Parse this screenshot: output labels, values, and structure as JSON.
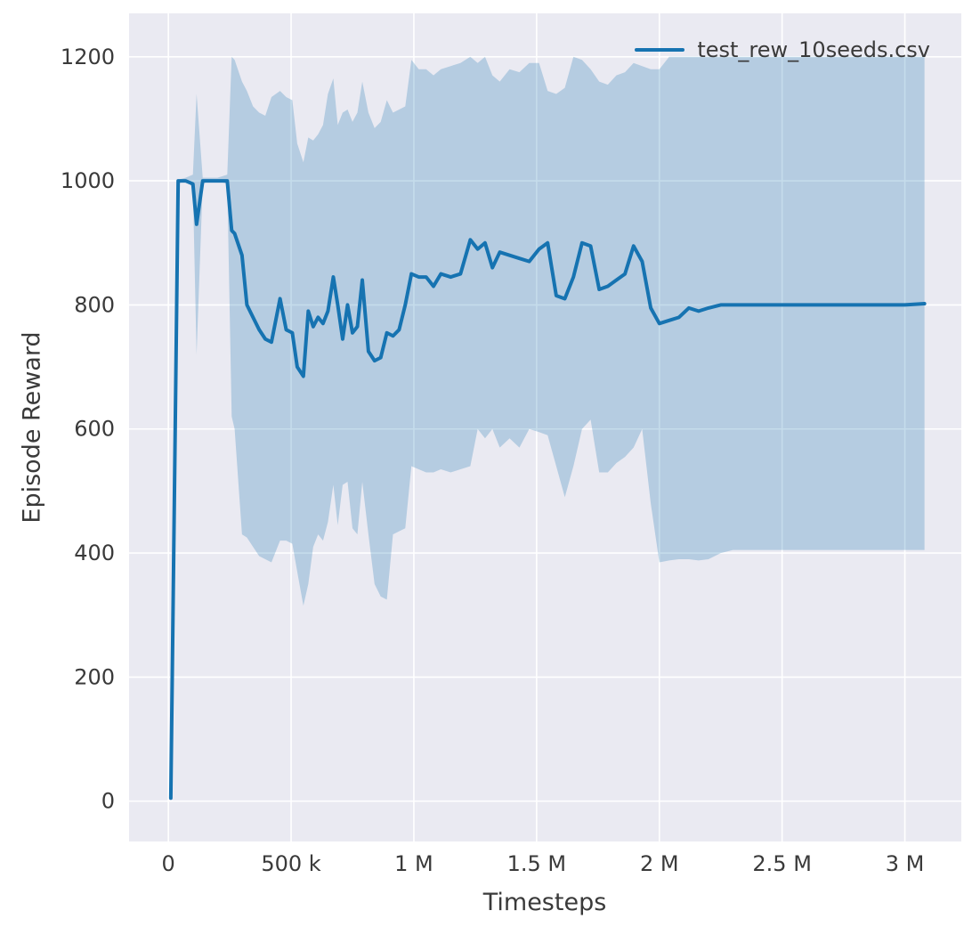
{
  "chart_data": {
    "type": "line",
    "title": "",
    "xlabel": "Timesteps",
    "ylabel": "Episode Reward",
    "legend": {
      "entries": [
        "test_rew_10seeds.csv"
      ],
      "position": "upper right",
      "frame": false
    },
    "grid": true,
    "xlim": [
      -160000,
      3230000
    ],
    "ylim": [
      -65,
      1270
    ],
    "x_ticks": {
      "values": [
        0,
        500000,
        1000000,
        1500000,
        2000000,
        2500000,
        3000000
      ],
      "labels": [
        "0",
        "500 k",
        "1 M",
        "1.5 M",
        "2 M",
        "2.5 M",
        "3 M"
      ]
    },
    "y_ticks": {
      "values": [
        0,
        200,
        400,
        600,
        800,
        1000,
        1200
      ],
      "labels": [
        "0",
        "200",
        "400",
        "600",
        "800",
        "1000",
        "1200"
      ]
    },
    "colors": {
      "line": "#1673b1",
      "band_opacity": 0.25,
      "background": "#eaeaf2",
      "grid": "#ffffff",
      "text": "#3a3a3a",
      "page": "#ffffff"
    },
    "series": [
      {
        "name": "test_rew_10seeds.csv",
        "x": [
          10000,
          40000,
          70000,
          100000,
          115000,
          140000,
          170000,
          200000,
          240000,
          258000,
          270000,
          300000,
          320000,
          345000,
          370000,
          395000,
          420000,
          455000,
          480000,
          505000,
          525000,
          550000,
          570000,
          590000,
          610000,
          630000,
          650000,
          672000,
          690000,
          710000,
          730000,
          750000,
          770000,
          790000,
          815000,
          840000,
          865000,
          890000,
          915000,
          940000,
          965000,
          990000,
          1020000,
          1050000,
          1080000,
          1110000,
          1150000,
          1190000,
          1230000,
          1260000,
          1290000,
          1320000,
          1350000,
          1390000,
          1430000,
          1470000,
          1510000,
          1545000,
          1580000,
          1615000,
          1650000,
          1685000,
          1720000,
          1755000,
          1790000,
          1825000,
          1860000,
          1895000,
          1930000,
          1965000,
          2000000,
          2040000,
          2080000,
          2120000,
          2160000,
          2200000,
          2250000,
          2300000,
          2400000,
          2500000,
          2600000,
          2700000,
          2800000,
          2900000,
          3000000,
          3080000
        ],
        "mean": [
          5,
          1000,
          1000,
          995,
          930,
          1000,
          1000,
          1000,
          1000,
          920,
          915,
          880,
          800,
          780,
          760,
          745,
          740,
          810,
          760,
          755,
          700,
          685,
          790,
          765,
          780,
          770,
          790,
          845,
          800,
          745,
          800,
          755,
          765,
          840,
          725,
          710,
          715,
          755,
          750,
          760,
          800,
          850,
          845,
          845,
          830,
          850,
          845,
          850,
          905,
          890,
          900,
          860,
          885,
          880,
          875,
          870,
          890,
          900,
          815,
          810,
          845,
          900,
          895,
          825,
          830,
          840,
          850,
          895,
          870,
          795,
          770,
          775,
          780,
          795,
          790,
          795,
          800,
          800,
          800,
          800,
          800,
          800,
          800,
          800,
          800,
          802
        ],
        "band_lower": [
          2,
          995,
          1000,
          990,
          720,
          995,
          1000,
          1000,
          995,
          620,
          600,
          430,
          425,
          410,
          395,
          390,
          385,
          420,
          420,
          415,
          370,
          315,
          350,
          410,
          430,
          420,
          450,
          510,
          445,
          510,
          515,
          440,
          430,
          515,
          430,
          350,
          330,
          325,
          430,
          435,
          440,
          540,
          535,
          530,
          530,
          535,
          530,
          535,
          540,
          600,
          585,
          600,
          570,
          585,
          570,
          600,
          595,
          590,
          540,
          490,
          540,
          600,
          615,
          530,
          530,
          545,
          555,
          570,
          600,
          480,
          385,
          388,
          390,
          390,
          388,
          390,
          400,
          405,
          405,
          405,
          405,
          405,
          405,
          405,
          405,
          405
        ],
        "band_upper": [
          8,
          1002,
          1005,
          1010,
          1140,
          1005,
          1005,
          1005,
          1010,
          1200,
          1195,
          1160,
          1145,
          1120,
          1110,
          1105,
          1135,
          1145,
          1135,
          1130,
          1060,
          1030,
          1070,
          1065,
          1075,
          1090,
          1140,
          1165,
          1090,
          1110,
          1115,
          1095,
          1110,
          1160,
          1110,
          1085,
          1095,
          1130,
          1110,
          1115,
          1120,
          1195,
          1180,
          1180,
          1170,
          1180,
          1185,
          1190,
          1200,
          1190,
          1200,
          1170,
          1160,
          1180,
          1175,
          1190,
          1190,
          1145,
          1140,
          1150,
          1200,
          1195,
          1180,
          1160,
          1155,
          1170,
          1175,
          1190,
          1185,
          1180,
          1180,
          1200,
          1200,
          1200,
          1200,
          1200,
          1200,
          1200,
          1200,
          1200,
          1200,
          1200,
          1200,
          1200,
          1200,
          1200
        ]
      }
    ]
  }
}
